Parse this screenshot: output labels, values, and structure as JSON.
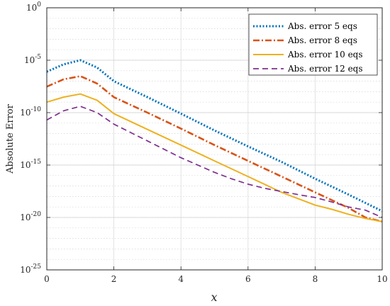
{
  "chart_data": {
    "type": "line",
    "title": "",
    "xlabel": "x",
    "ylabel": "Absolute Error",
    "xlim": [
      0,
      10
    ],
    "ylim": [
      1e-25,
      1
    ],
    "y_scale": "log",
    "x_ticks": [
      "0",
      "2",
      "4",
      "6",
      "8",
      "10"
    ],
    "y_ticks": [
      {
        "base": "10",
        "exp": "-25"
      },
      {
        "base": "10",
        "exp": "-20"
      },
      {
        "base": "10",
        "exp": "-15"
      },
      {
        "base": "10",
        "exp": "-10"
      },
      {
        "base": "10",
        "exp": "-5"
      },
      {
        "base": "10",
        "exp": "0"
      }
    ],
    "grid": true,
    "legend_position": "top-right",
    "series": [
      {
        "name": "Abs. error 5 eqs",
        "color": "#0072BD",
        "style": "dotted",
        "x": [
          0,
          0.5,
          1.0,
          1.5,
          2,
          3,
          4,
          5,
          6,
          7,
          8,
          9,
          10
        ],
        "y": [
          8e-07,
          4e-06,
          1e-05,
          2e-06,
          1e-07,
          3e-09,
          8e-11,
          2e-12,
          6e-14,
          2e-15,
          5e-17,
          1.5e-18,
          4e-20
        ]
      },
      {
        "name": "Abs. error 8 eqs",
        "color": "#D95319",
        "style": "dashdot",
        "x": [
          0,
          0.5,
          1.0,
          1.5,
          2,
          3,
          4,
          5,
          6,
          7,
          8,
          9,
          9.5,
          10
        ],
        "y": [
          3e-08,
          1.5e-07,
          3e-07,
          6e-08,
          3e-09,
          1e-10,
          3e-12,
          8e-14,
          2.5e-15,
          8e-17,
          2.5e-18,
          8e-20,
          1e-20,
          4e-21
        ]
      },
      {
        "name": "Abs. error 10 eqs",
        "color": "#EDB120",
        "style": "solid",
        "x": [
          0,
          0.5,
          1.0,
          1.5,
          2,
          3,
          4,
          5,
          6,
          7,
          8,
          8.5,
          9,
          9.5,
          10
        ],
        "y": [
          1e-09,
          3e-09,
          6e-09,
          1.5e-09,
          8e-11,
          2.5e-12,
          8e-14,
          2.5e-15,
          8e-17,
          2.5e-18,
          1.5e-19,
          6e-20,
          2e-20,
          8e-21,
          4e-21
        ]
      },
      {
        "name": "Abs. error 12 eqs",
        "color": "#7E2F8E",
        "style": "dashed",
        "x": [
          0,
          0.5,
          1.0,
          1.5,
          2,
          3,
          4,
          5,
          5.5,
          6,
          6.5,
          7,
          7.5,
          8,
          8.5,
          9,
          9.5,
          10
        ],
        "y": [
          2e-11,
          1.5e-10,
          4e-10,
          1e-10,
          8e-12,
          2e-13,
          5e-15,
          2e-16,
          5e-17,
          1.5e-17,
          6e-18,
          3e-18,
          1.5e-18,
          8e-19,
          3e-19,
          1e-19,
          5e-20,
          1e-20
        ]
      }
    ]
  }
}
